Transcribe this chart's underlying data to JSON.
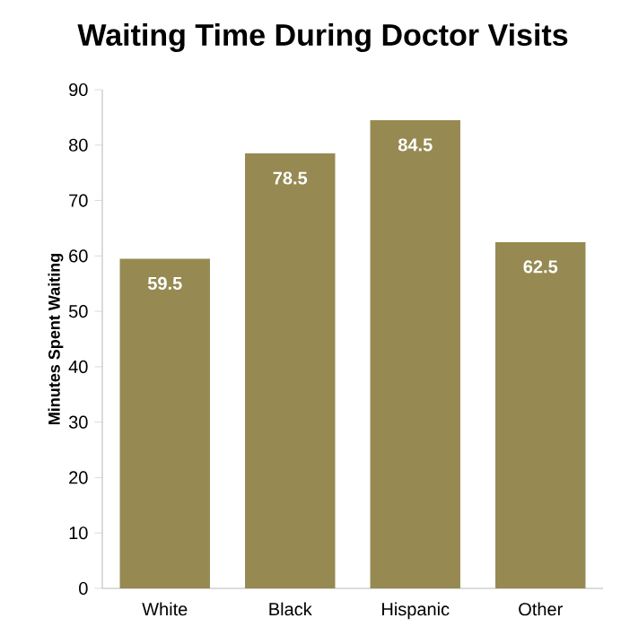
{
  "chart_data": {
    "type": "bar",
    "title": "Waiting Time During Doctor Visits",
    "ylabel": "Minutes Spent Waiting",
    "categories": [
      "White",
      "Black",
      "Hispanic",
      "Other"
    ],
    "values": [
      59.5,
      78.5,
      84.5,
      62.5
    ],
    "color": "#968a52",
    "data_labels": true,
    "grid": false,
    "ylim": [
      0,
      90
    ],
    "yticks": [
      0,
      10,
      20,
      30,
      40,
      50,
      60,
      70,
      80,
      90
    ]
  }
}
